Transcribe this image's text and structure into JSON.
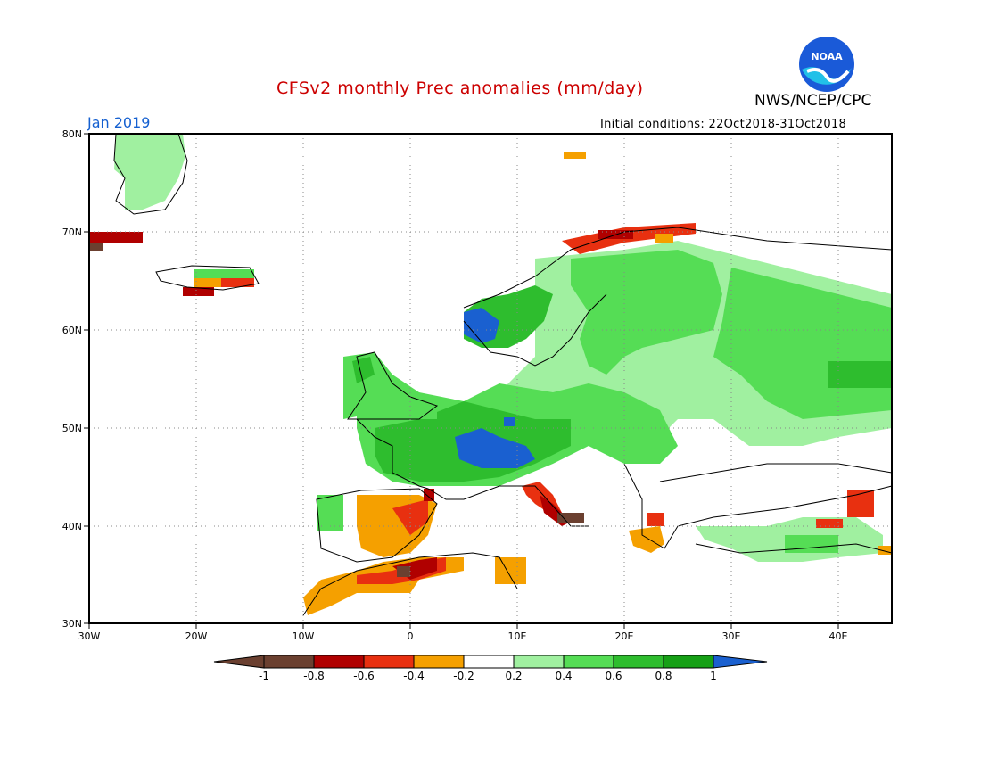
{
  "header": {
    "title": "CFSv2 monthly Prec anomalies (mm/day)",
    "agency": "NWS/NCEP/CPC",
    "month": "Jan 2019",
    "initial_conditions": "Initial conditions: 22Oct2018-31Oct2018"
  },
  "logo": {
    "text": "NOAA"
  },
  "axes": {
    "lat_labels": [
      "80N",
      "70N",
      "60N",
      "50N",
      "40N",
      "30N"
    ],
    "lon_labels": [
      "30W",
      "20W",
      "10W",
      "0",
      "10E",
      "20E",
      "30E",
      "40E"
    ]
  },
  "colorbar": {
    "labels": [
      "-1",
      "-0.8",
      "-0.6",
      "-0.4",
      "-0.2",
      "0.2",
      "0.4",
      "0.6",
      "0.8",
      "1"
    ],
    "colors": [
      "#6b4030",
      "#b00000",
      "#e83010",
      "#f5a000",
      "#ffffff",
      "#a0f0a0",
      "#55dd55",
      "#2ebd2e",
      "#16a016",
      "#1a60d0"
    ]
  },
  "regions": [
    {
      "name": "greenland",
      "color": "#a0f0a0"
    },
    {
      "name": "central-europe",
      "color": "#2ebd2e"
    },
    {
      "name": "france-alps",
      "color": "#1a60d0"
    },
    {
      "name": "spain",
      "color": "#f5a000"
    },
    {
      "name": "italy",
      "color": "#b00000"
    },
    {
      "name": "russia",
      "color": "#55dd55"
    }
  ]
}
